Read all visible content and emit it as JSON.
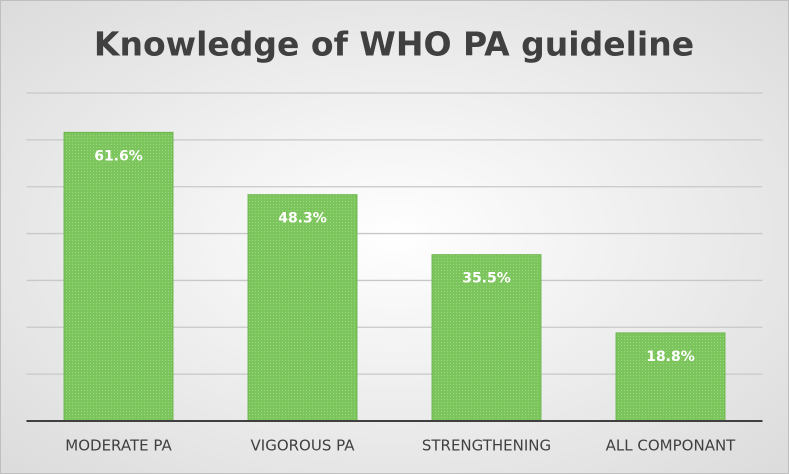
{
  "chart_data": {
    "type": "bar",
    "title": "Knowledge of WHO PA guideline",
    "categories": [
      "MODERATE PA",
      "VIGOROUS PA",
      "STRENGTHENING",
      "ALL COMPONANT"
    ],
    "values": [
      61.6,
      48.3,
      35.5,
      18.8
    ],
    "value_labels": [
      "61.6%",
      "48.3%",
      "35.5%",
      "18.8%"
    ],
    "color": "#7cc55c",
    "ylim": [
      0,
      70
    ],
    "yticks": [
      0,
      10,
      20,
      30,
      40,
      50,
      60,
      70
    ],
    "grid": true
  }
}
